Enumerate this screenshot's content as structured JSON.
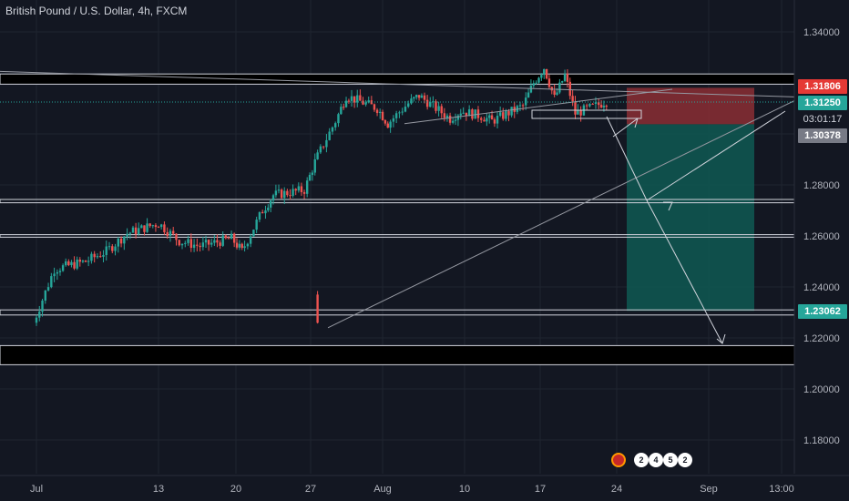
{
  "header": {
    "title": "British Pound / U.S. Dollar, 4h, FXCM"
  },
  "price_tags": {
    "upper_red": "1.31806",
    "last_price": "1.31250",
    "countdown": "03:01:17",
    "entry": "1.30378",
    "target": "1.23062"
  },
  "event_badges": [
    "2",
    "4",
    "5",
    "2"
  ],
  "colors": {
    "background": "#131722",
    "up": "#26a69a",
    "down": "#ef5350",
    "stop_zone": "#8b2e34",
    "target_zone": "#0f5550",
    "line": "#d1d4dc"
  },
  "chart_data": {
    "type": "candlestick",
    "title": "British Pound / U.S. Dollar, 4h, FXCM",
    "symbol": "GBPUSD",
    "timeframe": "4h",
    "xlabel": "",
    "ylabel": "",
    "x_ticks": [
      "Jul",
      "13",
      "20",
      "27",
      "Aug",
      "10",
      "17",
      "24",
      "Sep",
      "13:00"
    ],
    "y_ticks": [
      "1.34000",
      "1.32000",
      "1.30000",
      "1.28000",
      "1.26000",
      "1.24000",
      "1.22000",
      "1.20000",
      "1.18000"
    ],
    "ylim": [
      1.165,
      1.35
    ],
    "grid": true,
    "key_levels": [
      1.3235,
      1.3195,
      1.2743,
      1.273,
      1.2605,
      1.2595,
      1.231,
      1.229,
      1.217,
      1.2095
    ],
    "trendline_support": {
      "from": [
        "Jun 30",
        1.224
      ],
      "to": [
        "Aug 24",
        1.302
      ]
    },
    "price_path": [
      [
        "Jun 29",
        1.237
      ],
      [
        "Jul 1",
        1.226
      ],
      [
        "Jul 3",
        1.247
      ],
      [
        "Jul 6",
        1.25
      ],
      [
        "Jul 8",
        1.254
      ],
      [
        "Jul 10",
        1.261
      ],
      [
        "Jul 13",
        1.265
      ],
      [
        "Jul 15",
        1.258
      ],
      [
        "Jul 17",
        1.256
      ],
      [
        "Jul 20",
        1.259
      ],
      [
        "Jul 21",
        1.254
      ],
      [
        "Jul 23",
        1.27
      ],
      [
        "Jul 24",
        1.276
      ],
      [
        "Jul 27",
        1.278
      ],
      [
        "Jul 28",
        1.289
      ],
      [
        "Jul 30",
        1.305
      ],
      [
        "Jul 31",
        1.315
      ],
      [
        "Aug 3",
        1.31
      ],
      [
        "Aug 4",
        1.304
      ],
      [
        "Aug 6",
        1.312
      ],
      [
        "Aug 7",
        1.315
      ],
      [
        "Aug 10",
        1.306
      ],
      [
        "Aug 11",
        1.309
      ],
      [
        "Aug 13",
        1.307
      ],
      [
        "Aug 14",
        1.305
      ],
      [
        "Aug 17",
        1.311
      ],
      [
        "Aug 18",
        1.32
      ],
      [
        "Aug 19",
        1.326
      ],
      [
        "Aug 20",
        1.314
      ],
      [
        "Aug 21",
        1.323
      ],
      [
        "Aug 22",
        1.308
      ],
      [
        "Aug 24",
        1.311
      ],
      [
        "Aug 25",
        1.313
      ]
    ],
    "position": {
      "side": "short",
      "stop": 1.31806,
      "entry": 1.30378,
      "target": 1.23062,
      "last": 1.3125
    },
    "projection_path": [
      [
        "Aug 24",
        1.304
      ],
      [
        "Aug 28",
        1.275
      ],
      [
        "Sep 2",
        1.295
      ],
      [
        "Aug 29",
        1.276
      ],
      [
        "Sep 4",
        1.218
      ]
    ]
  }
}
